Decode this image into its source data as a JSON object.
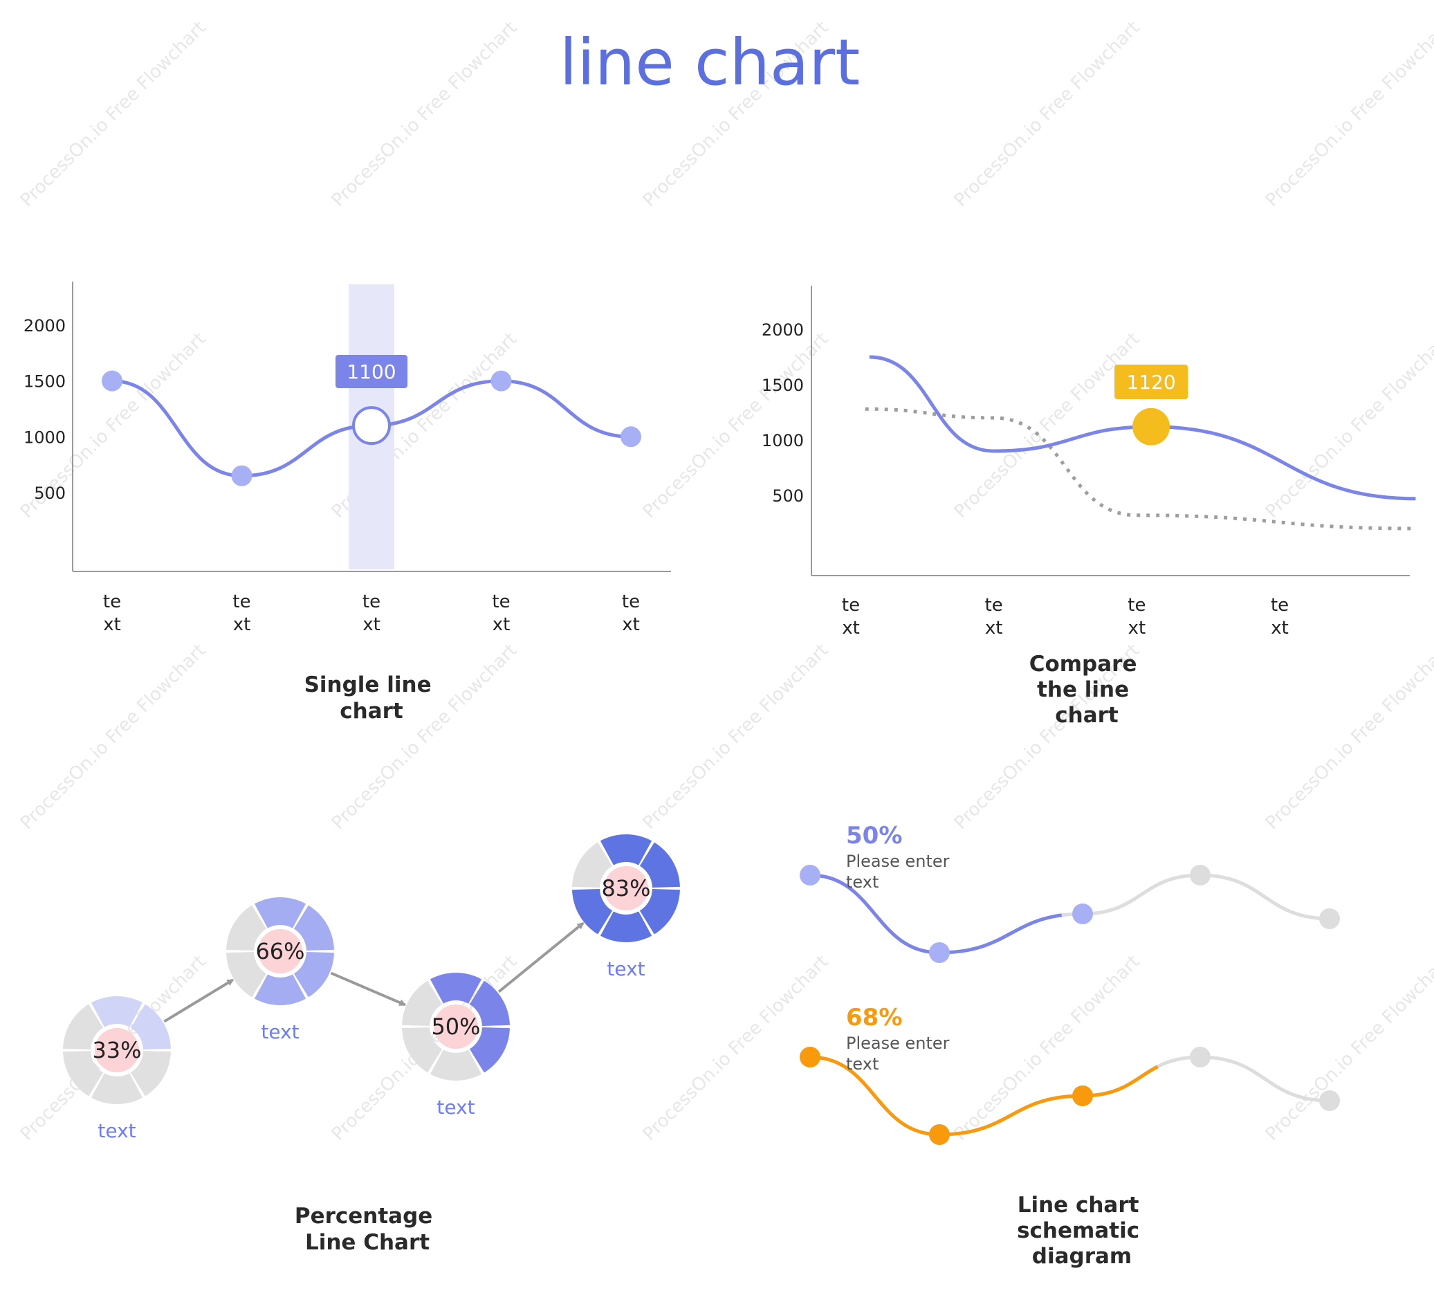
{
  "title": "line chart",
  "watermark": "ProcessOn.io Free Flowchart",
  "colors": {
    "title": "#5b6fe0",
    "line_blue": "#7b84e8",
    "point_blue": "#a8b0f5",
    "highlight_band": "#e6e8fa",
    "tooltip_blue": "#7b84e8",
    "tooltip_yellow": "#f4bc1c",
    "dotted_grey": "#9e9e9e",
    "orange": "#f89a0c",
    "grey_line": "#dddddd",
    "ring_grey": "#e0e0e0",
    "ring_center": "#fcd3d6"
  },
  "chart_data": [
    {
      "type": "line",
      "caption": [
        "Single line",
        "chart"
      ],
      "categories": [
        [
          "te",
          "xt"
        ],
        [
          "te",
          "xt"
        ],
        [
          "te",
          "xt"
        ],
        [
          "te",
          "xt"
        ],
        [
          "te",
          "xt"
        ]
      ],
      "yticks": [
        500,
        1000,
        1500,
        2000
      ],
      "ylim": [
        0,
        2400
      ],
      "series": [
        {
          "values": [
            1500,
            650,
            1100,
            1500,
            1000
          ]
        }
      ],
      "highlight_index": 2,
      "tooltip": "1100"
    },
    {
      "type": "line",
      "caption": [
        "Compare",
        "the line",
        "chart"
      ],
      "categories": [
        [
          "te",
          "xt"
        ],
        [
          "te",
          "xt"
        ],
        [
          "te",
          "xt"
        ],
        [
          "te",
          "xt"
        ]
      ],
      "yticks": [
        500,
        1000,
        1500,
        2000
      ],
      "ylim": [
        0,
        2400
      ],
      "x": [
        0.13,
        1,
        2,
        2.1,
        3,
        3.95
      ],
      "series": [
        {
          "style": "solid",
          "x": [
            0.13,
            1,
            2.1,
            3.95
          ],
          "values": [
            1750,
            900,
            1120,
            470
          ]
        },
        {
          "style": "dotted",
          "x": [
            0.1,
            1,
            2,
            3.95
          ],
          "values": [
            1280,
            1200,
            320,
            200
          ]
        }
      ],
      "highlight": {
        "x": 2.1,
        "value": 1120
      },
      "tooltip": "1120"
    },
    {
      "type": "percentage-rings",
      "caption": [
        "Percentage",
        "Line Chart"
      ],
      "points": [
        {
          "value": 33,
          "label": "33%",
          "text": "text",
          "color": "#d0d5f8"
        },
        {
          "value": 66,
          "label": "66%",
          "text": "text",
          "color": "#a4adf1"
        },
        {
          "value": 50,
          "label": "50%",
          "text": "text",
          "color": "#7b84e8"
        },
        {
          "value": 83,
          "label": "83%",
          "text": "text",
          "color": "#5e74e2"
        }
      ]
    },
    {
      "type": "line",
      "caption": [
        "Line chart",
        "schematic",
        "diagram"
      ],
      "series": [
        {
          "name": "50%",
          "percent": 50,
          "hint": [
            "Please enter",
            "text"
          ],
          "color": "#7b84e8",
          "point_color": "#a8b0f5",
          "values": [
            1,
            0.2,
            0.6,
            1,
            0.55
          ]
        },
        {
          "name": "68%",
          "percent": 68,
          "hint": [
            "Please enter",
            "text"
          ],
          "color": "#f89a0c",
          "point_color": "#f89a0c",
          "values": [
            1,
            0.2,
            0.6,
            1,
            0.55
          ]
        }
      ]
    }
  ]
}
